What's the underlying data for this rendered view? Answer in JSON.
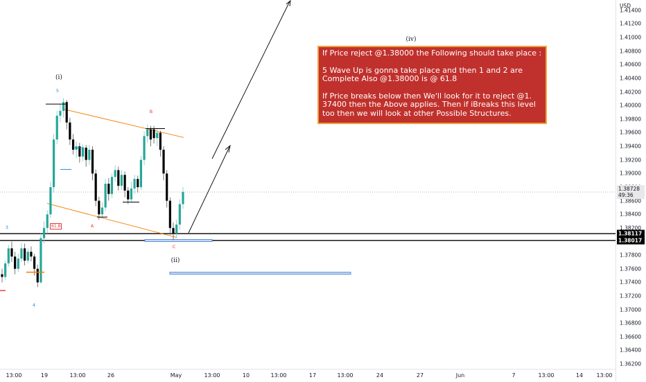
{
  "chart_data": {
    "type": "candlestick",
    "symbol_currency": "USD",
    "price_axis": {
      "ticks": [
        "1.41400",
        "1.41200",
        "1.41000",
        "1.40800",
        "1.40600",
        "1.40400",
        "1.40200",
        "1.40000",
        "1.39800",
        "1.39600",
        "1.39400",
        "1.39200",
        "1.39000",
        "1.38800",
        "1.38600",
        "1.38400",
        "1.38200",
        "1.38000",
        "1.37800",
        "1.37600",
        "1.37400",
        "1.37200",
        "1.37000",
        "1.36800",
        "1.36600",
        "1.36400",
        "1.36200"
      ],
      "range": [
        1.3613,
        1.4155
      ]
    },
    "time_axis": {
      "labels": [
        "13:00",
        "19",
        "13:00",
        "26",
        "May",
        "13:00",
        "10",
        "13:00",
        "17",
        "13:00",
        "24",
        "27",
        "Jun",
        "7",
        "13:00",
        "14",
        "13:00"
      ]
    },
    "current_price": {
      "value": "1.38728",
      "countdown": "49:36"
    },
    "levels": [
      {
        "value": 1.38117,
        "label": "1.38117"
      },
      {
        "value": 1.38017,
        "label": "1.38017"
      }
    ],
    "candles": [
      [
        1.3752,
        1.3748,
        1.376,
        1.374
      ],
      [
        1.3748,
        1.3768,
        1.3772,
        1.3744
      ],
      [
        1.3768,
        1.379,
        1.3795,
        1.3763
      ],
      [
        1.379,
        1.3778,
        1.38,
        1.377
      ],
      [
        1.3778,
        1.376,
        1.3785,
        1.3752
      ],
      [
        1.376,
        1.3775,
        1.3782,
        1.3755
      ],
      [
        1.3775,
        1.379,
        1.3798,
        1.377
      ],
      [
        1.379,
        1.3772,
        1.3797,
        1.3765
      ],
      [
        1.3772,
        1.3785,
        1.379,
        1.3768
      ],
      [
        1.3785,
        1.3778,
        1.3793,
        1.3771
      ],
      [
        1.3778,
        1.376,
        1.3782,
        1.375
      ],
      [
        1.376,
        1.374,
        1.3766,
        1.3733
      ],
      [
        1.374,
        1.3805,
        1.3812,
        1.3738
      ],
      [
        1.3805,
        1.382,
        1.383,
        1.3797
      ],
      [
        1.382,
        1.384,
        1.3846,
        1.3812
      ],
      [
        1.384,
        1.388,
        1.3888,
        1.3835
      ],
      [
        1.388,
        1.395,
        1.3958,
        1.3872
      ],
      [
        1.395,
        1.3985,
        1.3992,
        1.3943
      ],
      [
        1.3985,
        1.3992,
        1.4002,
        1.3975
      ],
      [
        1.3992,
        1.4005,
        1.4011,
        1.3982
      ],
      [
        1.4005,
        1.3975,
        1.4008,
        1.3965
      ],
      [
        1.3975,
        1.395,
        1.3982,
        1.3942
      ],
      [
        1.395,
        1.3935,
        1.3958,
        1.3928
      ],
      [
        1.3935,
        1.394,
        1.3947,
        1.3923
      ],
      [
        1.394,
        1.3925,
        1.3945,
        1.3916
      ],
      [
        1.3925,
        1.3938,
        1.3943,
        1.3918
      ],
      [
        1.3938,
        1.392,
        1.3942,
        1.391
      ],
      [
        1.392,
        1.3935,
        1.3942,
        1.3913
      ],
      [
        1.3935,
        1.39,
        1.394,
        1.389
      ],
      [
        1.39,
        1.386,
        1.3906,
        1.3852
      ],
      [
        1.386,
        1.384,
        1.3866,
        1.3832
      ],
      [
        1.384,
        1.385,
        1.3858,
        1.3835
      ],
      [
        1.385,
        1.3885,
        1.3892,
        1.3845
      ],
      [
        1.3885,
        1.387,
        1.3893,
        1.386
      ],
      [
        1.387,
        1.3895,
        1.39,
        1.3864
      ],
      [
        1.3895,
        1.3905,
        1.3912,
        1.3888
      ],
      [
        1.3905,
        1.3882,
        1.391,
        1.3875
      ],
      [
        1.3882,
        1.3898,
        1.3905,
        1.3876
      ],
      [
        1.3898,
        1.3875,
        1.3903,
        1.3865
      ],
      [
        1.3875,
        1.3862,
        1.388,
        1.3855
      ],
      [
        1.3862,
        1.3878,
        1.3888,
        1.3858
      ],
      [
        1.3878,
        1.3892,
        1.3898,
        1.387
      ],
      [
        1.3892,
        1.388,
        1.3897,
        1.3872
      ],
      [
        1.388,
        1.392,
        1.3926,
        1.3876
      ],
      [
        1.392,
        1.3955,
        1.3962,
        1.3912
      ],
      [
        1.3955,
        1.3965,
        1.3972,
        1.3945
      ],
      [
        1.3965,
        1.395,
        1.397,
        1.394
      ],
      [
        1.3965,
        1.3952,
        1.397,
        1.3944
      ],
      [
        1.3952,
        1.396,
        1.3966,
        1.394
      ],
      [
        1.396,
        1.3935,
        1.3963,
        1.3925
      ],
      [
        1.3935,
        1.39,
        1.394,
        1.389
      ],
      [
        1.39,
        1.386,
        1.3905,
        1.385
      ],
      [
        1.386,
        1.382,
        1.3865,
        1.381
      ],
      [
        1.382,
        1.3812,
        1.3828,
        1.3802
      ],
      [
        1.3812,
        1.3825,
        1.3832,
        1.3806
      ],
      [
        1.3825,
        1.3855,
        1.3862,
        1.3818
      ],
      [
        1.3855,
        1.3873,
        1.388,
        1.3848
      ]
    ],
    "annotations": {
      "note": [
        "If Price reject @1.38000 the Following should take place :",
        "5 Wave Up is gonna take place and then 1 and 2 are Complete Also @1.38000 is @ 61.8",
        "If Price breaks below then We'll look for it to reject @1. 37400 then the Above applies. Then if iBreaks this level too then we will look at other Possible Structures."
      ],
      "wave_i": "(i)",
      "wave_ii": "(ii)",
      "wave_iv": "(iv)",
      "point_3": "3",
      "point_4": "4",
      "point_5": "5",
      "point_A": "A",
      "point_B": "B",
      "point_C": "C",
      "fib": "61.8"
    },
    "colors": {
      "up": "#26a69a",
      "down": "#000000",
      "accent": "#f57c00",
      "zone": "#5b8fd6",
      "note_bg": "#c0312d"
    }
  }
}
